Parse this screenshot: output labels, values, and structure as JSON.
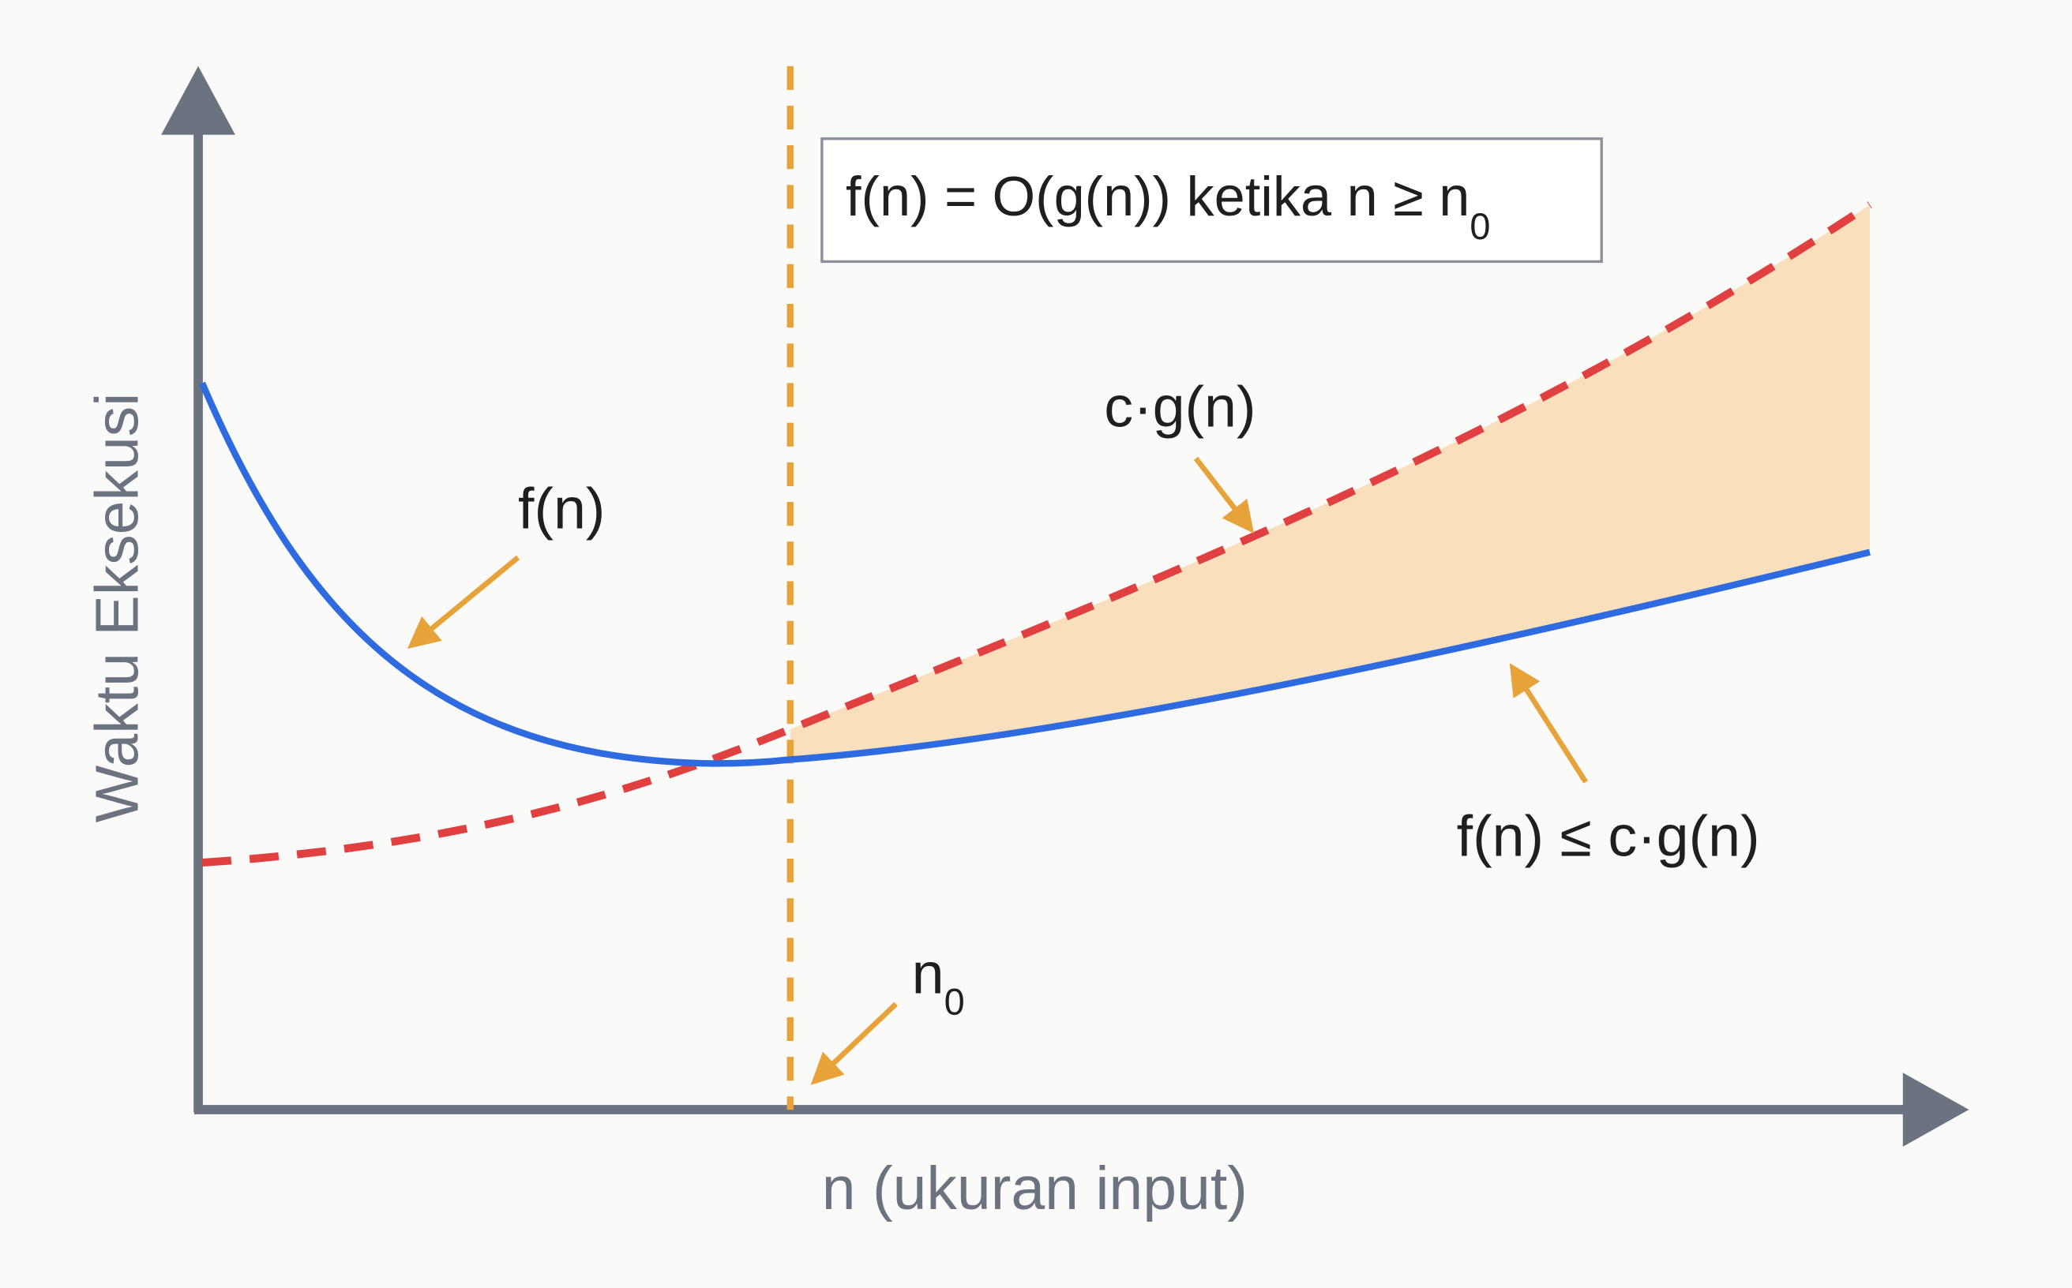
{
  "formula": {
    "text": "f(n) = O(g(n)) ketika n ≥ n",
    "subscript": "0"
  },
  "labels": {
    "f": "f(n)",
    "cg": "c·g(n)",
    "inequality": "f(n) ≤ c·g(n)",
    "n0": {
      "text": "n",
      "subscript": "0"
    }
  },
  "axes": {
    "y_label": "Waktu Eksekusi",
    "x_label": "n (ukuran input)"
  }
}
